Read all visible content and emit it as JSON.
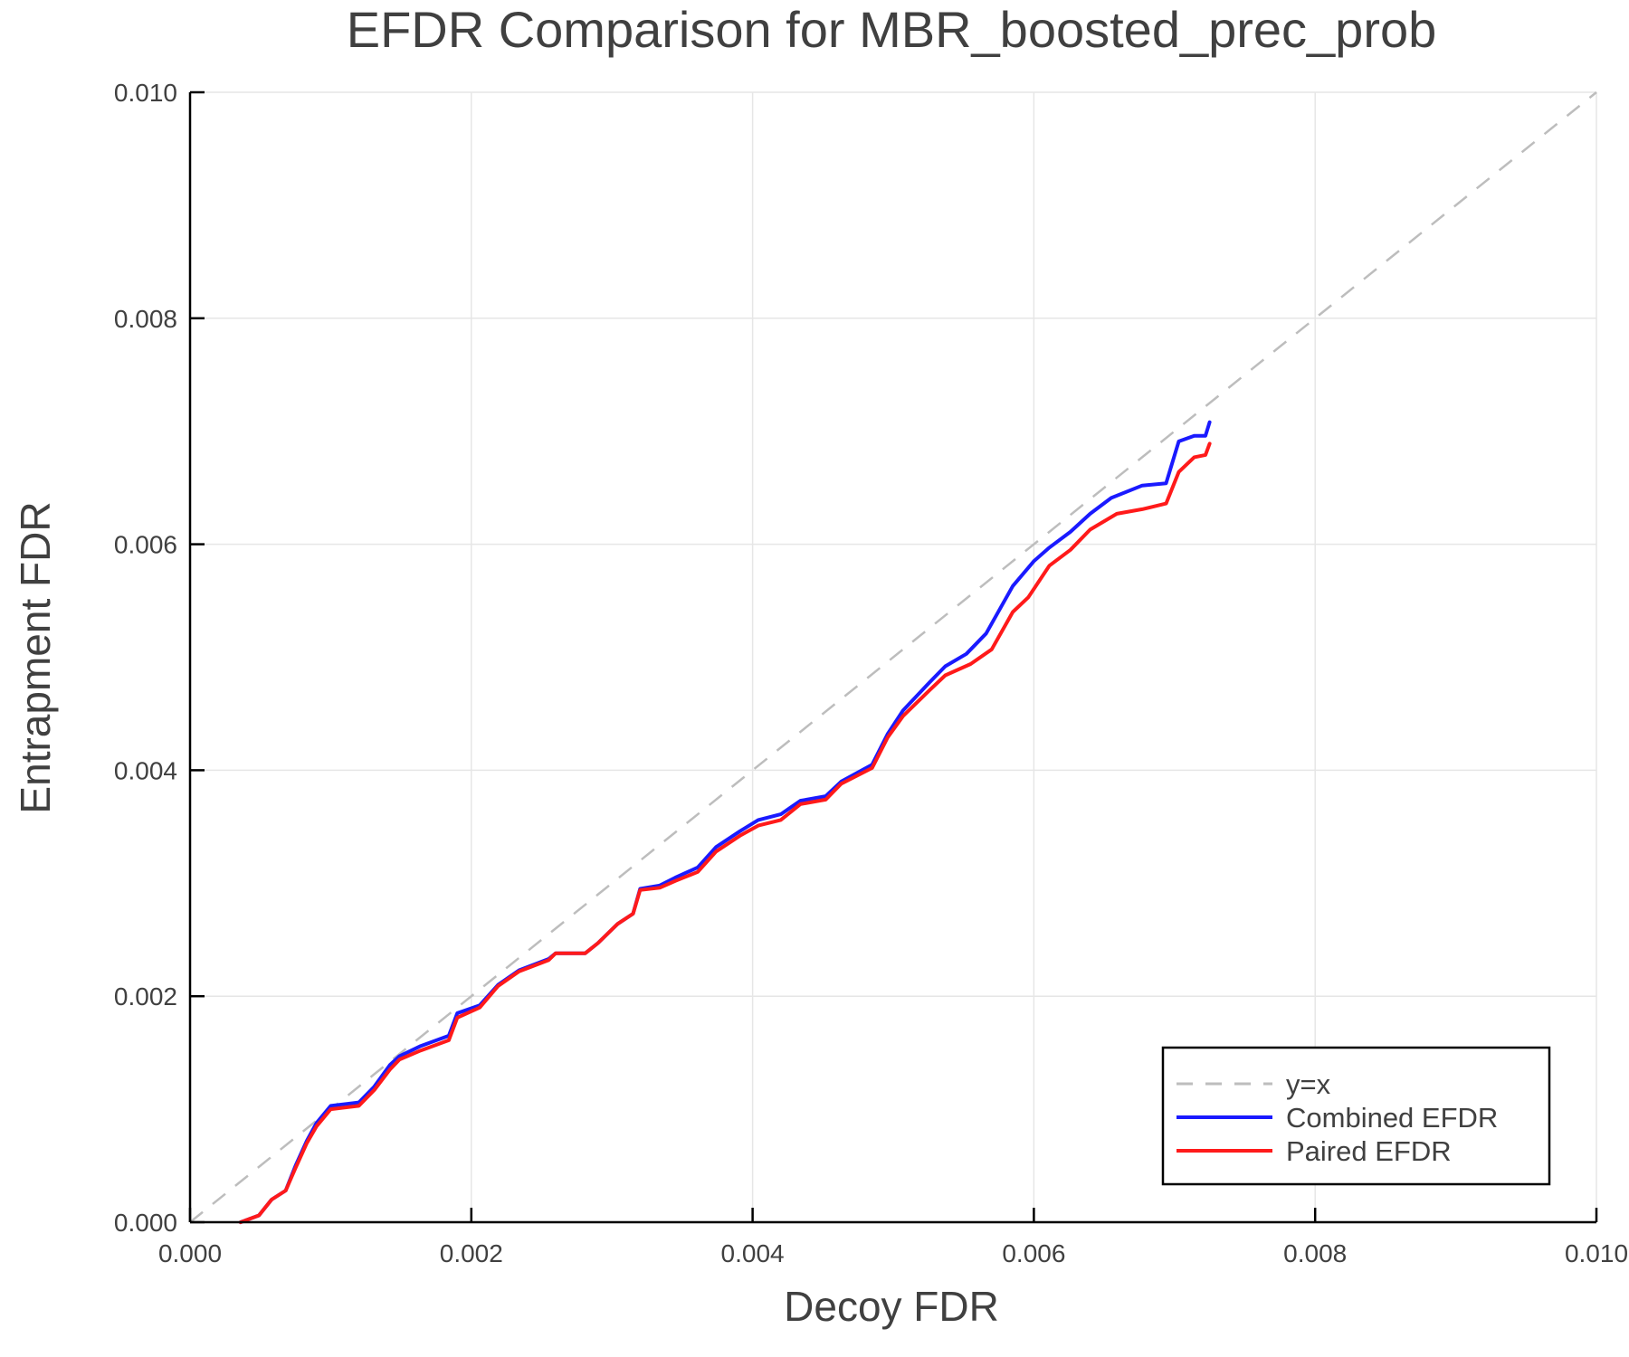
{
  "chart_data": {
    "type": "line",
    "title": "EFDR Comparison for MBR_boosted_prec_prob",
    "xlabel": "Decoy FDR",
    "ylabel": "Entrapment FDR",
    "xlim": [
      0,
      0.01
    ],
    "ylim": [
      0,
      0.01
    ],
    "xticks": [
      "0.000",
      "0.002",
      "0.004",
      "0.006",
      "0.008",
      "0.010"
    ],
    "yticks": [
      "0.000",
      "0.002",
      "0.004",
      "0.006",
      "0.008",
      "0.010"
    ],
    "grid": true,
    "legend_position": "bottom-right",
    "series": [
      {
        "name": "y=x",
        "color": "#bdbdbd",
        "style": "dashed",
        "x": [
          0,
          0.01
        ],
        "y": [
          0,
          0.01
        ]
      },
      {
        "name": "Combined EFDR",
        "color": "#1a1aff",
        "style": "solid",
        "x": [
          0.00036,
          0.00049,
          0.00058,
          0.00068,
          0.00075,
          0.00083,
          0.0009,
          0.001,
          0.0012,
          0.00131,
          0.00142,
          0.00149,
          0.00164,
          0.00184,
          0.0019,
          0.00206,
          0.00219,
          0.00234,
          0.00255,
          0.0026,
          0.00281,
          0.0029,
          0.00304,
          0.00315,
          0.0032,
          0.00334,
          0.00345,
          0.00361,
          0.00374,
          0.00391,
          0.00404,
          0.0042,
          0.00434,
          0.00452,
          0.00463,
          0.00485,
          0.00496,
          0.00507,
          0.00526,
          0.00537,
          0.00552,
          0.00566,
          0.00585,
          0.006,
          0.00611,
          0.00626,
          0.0064,
          0.00655,
          0.00677,
          0.00694,
          0.00703,
          0.00714,
          0.00722,
          0.00725
        ],
        "y": [
          0,
          6e-05,
          0.0002,
          0.00028,
          0.0005,
          0.00072,
          0.00088,
          0.00103,
          0.00106,
          0.0012,
          0.00139,
          0.00147,
          0.00156,
          0.00165,
          0.00185,
          0.00192,
          0.0021,
          0.00223,
          0.00233,
          0.00238,
          0.00238,
          0.00247,
          0.00264,
          0.00273,
          0.00295,
          0.00298,
          0.00305,
          0.00314,
          0.00332,
          0.00346,
          0.00356,
          0.00361,
          0.00373,
          0.00377,
          0.0039,
          0.00405,
          0.00432,
          0.00453,
          0.00478,
          0.00492,
          0.00503,
          0.00521,
          0.00563,
          0.00585,
          0.00597,
          0.00611,
          0.00627,
          0.00641,
          0.00652,
          0.00654,
          0.00691,
          0.00696,
          0.00696,
          0.00708
        ]
      },
      {
        "name": "Paired EFDR",
        "color": "#ff1a1a",
        "style": "solid",
        "x": [
          0.00036,
          0.00049,
          0.00058,
          0.00068,
          0.00075,
          0.00083,
          0.0009,
          0.001,
          0.0012,
          0.00131,
          0.00142,
          0.00149,
          0.00164,
          0.00184,
          0.0019,
          0.00206,
          0.00219,
          0.00234,
          0.00255,
          0.0026,
          0.00281,
          0.0029,
          0.00304,
          0.00315,
          0.0032,
          0.00334,
          0.00345,
          0.00361,
          0.00374,
          0.00391,
          0.00404,
          0.0042,
          0.00434,
          0.00452,
          0.00463,
          0.00485,
          0.00496,
          0.00507,
          0.00526,
          0.00537,
          0.00555,
          0.0057,
          0.00585,
          0.00596,
          0.00611,
          0.00626,
          0.0064,
          0.00659,
          0.00677,
          0.00694,
          0.00703,
          0.00714,
          0.00722,
          0.00725
        ],
        "y": [
          0,
          6e-05,
          0.0002,
          0.00028,
          0.00048,
          0.0007,
          0.00085,
          0.001,
          0.00103,
          0.00117,
          0.00135,
          0.00144,
          0.00152,
          0.00161,
          0.00181,
          0.0019,
          0.00209,
          0.00222,
          0.00232,
          0.00238,
          0.00238,
          0.00247,
          0.00264,
          0.00273,
          0.00294,
          0.00296,
          0.00302,
          0.0031,
          0.00328,
          0.00342,
          0.00351,
          0.00356,
          0.0037,
          0.00374,
          0.00388,
          0.00402,
          0.00429,
          0.00448,
          0.00471,
          0.00484,
          0.00494,
          0.00507,
          0.0054,
          0.00553,
          0.00581,
          0.00595,
          0.00613,
          0.00627,
          0.00631,
          0.00636,
          0.00664,
          0.00677,
          0.00679,
          0.00689
        ]
      }
    ]
  }
}
